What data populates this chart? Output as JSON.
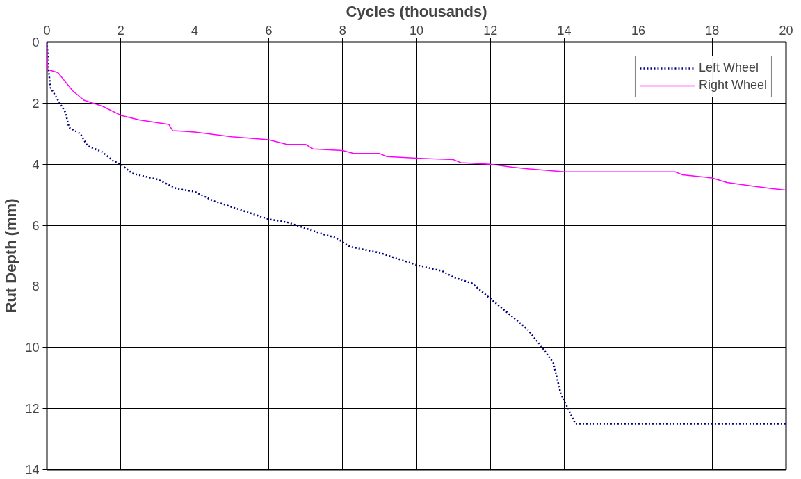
{
  "chart_data": {
    "type": "line",
    "xlabel": "Cycles (thousands)",
    "ylabel": "Rut Depth (mm)",
    "xlim": [
      0,
      20
    ],
    "xticks": [
      0,
      2,
      4,
      6,
      8,
      10,
      12,
      14,
      16,
      18,
      20
    ],
    "ylim": [
      14,
      0
    ],
    "yticks": [
      0,
      2,
      4,
      6,
      8,
      10,
      12,
      14
    ],
    "grid": true,
    "legend": "top right",
    "series": [
      {
        "name": "Left Wheel",
        "color": "#000080",
        "line_style": "dotted",
        "x": [
          0,
          0.05,
          0.1,
          0.3,
          0.5,
          0.6,
          0.9,
          1.1,
          1.5,
          1.8,
          2,
          2.3,
          3,
          3.5,
          4,
          4.5,
          5,
          5.5,
          6,
          6.5,
          7,
          7.5,
          7.8,
          8.2,
          9,
          9.5,
          10,
          10.7,
          11,
          11.5,
          12,
          12.5,
          13,
          13.4,
          13.7,
          13.9,
          14.1,
          14.3,
          20
        ],
        "values": [
          0,
          1,
          1.5,
          1.9,
          2.3,
          2.8,
          3.0,
          3.4,
          3.6,
          3.9,
          4.0,
          4.3,
          4.5,
          4.8,
          4.9,
          5.2,
          5.4,
          5.6,
          5.8,
          5.9,
          6.1,
          6.3,
          6.4,
          6.7,
          6.9,
          7.1,
          7.3,
          7.5,
          7.7,
          7.9,
          8.4,
          8.9,
          9.4,
          10.0,
          10.5,
          11.5,
          12.0,
          12.5,
          12.5
        ]
      },
      {
        "name": "Right Wheel",
        "color": "#ff00ff",
        "line_style": "solid",
        "x": [
          0,
          0.02,
          0.3,
          0.5,
          0.7,
          1,
          1.5,
          2,
          2.5,
          3.3,
          3.4,
          4,
          5,
          6,
          6.5,
          7,
          7.2,
          8,
          8.3,
          9,
          9.2,
          10,
          11,
          11.2,
          12,
          12.6,
          13,
          14,
          17,
          17.2,
          18,
          18.4,
          19,
          19.6,
          20
        ],
        "values": [
          0,
          0.9,
          1.0,
          1.3,
          1.6,
          1.9,
          2.1,
          2.4,
          2.55,
          2.7,
          2.9,
          2.95,
          3.1,
          3.2,
          3.35,
          3.35,
          3.5,
          3.55,
          3.65,
          3.65,
          3.75,
          3.8,
          3.85,
          3.95,
          4.0,
          4.1,
          4.15,
          4.25,
          4.25,
          4.35,
          4.45,
          4.6,
          4.7,
          4.8,
          4.85
        ]
      }
    ]
  }
}
